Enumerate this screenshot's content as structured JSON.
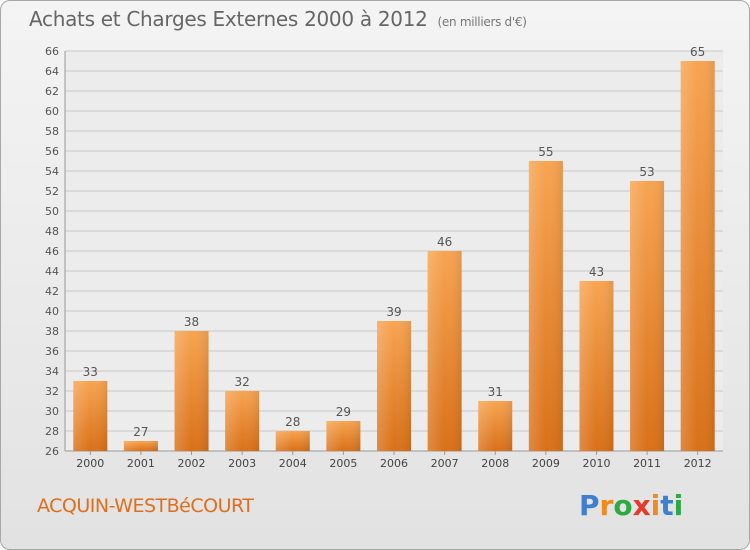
{
  "chart_data": {
    "type": "bar",
    "title": "Achats et Charges Externes 2000 à 2012",
    "subtitle": "(en milliers d'€)",
    "categories": [
      "2000",
      "2001",
      "2002",
      "2003",
      "2004",
      "2005",
      "2006",
      "2007",
      "2008",
      "2009",
      "2010",
      "2011",
      "2012"
    ],
    "values": [
      33,
      27,
      38,
      32,
      28,
      29,
      39,
      46,
      31,
      55,
      43,
      53,
      65
    ],
    "xlabel": "",
    "ylabel": "",
    "ylim": [
      26,
      66
    ],
    "ytick_step": 2,
    "grid": true,
    "bar_color": "#f0923a",
    "data_labels": true
  },
  "footer": {
    "commune": "ACQUIN-WESTBéCOURT",
    "logo": [
      "P",
      "r",
      "o",
      "x",
      "i",
      "t",
      "i"
    ],
    "logo_colors": [
      "#3f7fd0",
      "#f08a1c",
      "#2eaa45",
      "#e63a2a",
      "#f08a1c",
      "#3f7fd0",
      "#2eaa45"
    ]
  }
}
